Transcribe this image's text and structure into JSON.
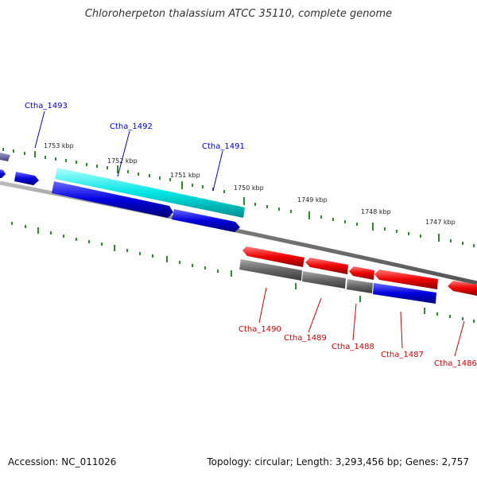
{
  "title": "Chloroherpeton thalassium ATCC 35110, complete genome",
  "footer": {
    "accession": "Accession: NC_011026",
    "topology": "Topology: circular; Length: 3,293,456 bp; Genes: 2,757"
  },
  "scale_labels": [
    "1753 kbp",
    "1752 kbp",
    "1751 kbp",
    "1750 kbp",
    "1749 kbp",
    "1748 kbp",
    "1747 kbp"
  ],
  "genes_forward": [
    "Ctha_1493",
    "Ctha_1492",
    "Ctha_1491"
  ],
  "genes_reverse": [
    "Ctha_1490",
    "Ctha_1489",
    "Ctha_1488",
    "Ctha_1487",
    "Ctha_1486"
  ],
  "colors": {
    "forward_gene": "#0000dd",
    "highlight_gene": "#00e5e5",
    "reverse_gene": "#ee0000",
    "grey_gene": "#666666",
    "backbone": "#888888",
    "ticks": "#2e8b2e"
  }
}
